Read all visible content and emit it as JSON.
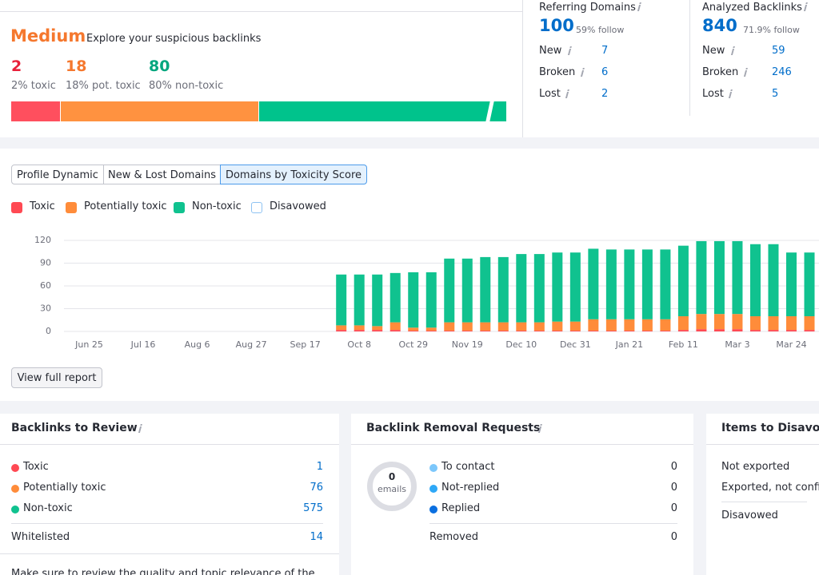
{
  "summary": {
    "level": "Medium",
    "description": "Explore your suspicious backlinks",
    "counts": [
      {
        "value": 2,
        "label": "2% toxic",
        "color": "#e8203a"
      },
      {
        "value": 18,
        "label": "18% pot. toxic",
        "color": "#f5782e"
      },
      {
        "value": 80,
        "label": "80% non-toxic",
        "color": "#00a67e"
      }
    ]
  },
  "stats": [
    {
      "title": "Referring Domains",
      "value": 100,
      "note": "59% follow",
      "rows": [
        {
          "label": "New",
          "value": 7
        },
        {
          "label": "Broken",
          "value": 6
        },
        {
          "label": "Lost",
          "value": 2
        }
      ]
    },
    {
      "title": "Analyzed Backlinks",
      "value": 840,
      "note": "71.9% follow",
      "rows": [
        {
          "label": "New",
          "value": 59
        },
        {
          "label": "Broken",
          "value": 246
        },
        {
          "label": "Lost",
          "value": 5
        }
      ]
    }
  ],
  "tabs": [
    "Profile Dynamic",
    "New & Lost Domains",
    "Domains by Toxicity Score"
  ],
  "active_tab": 2,
  "chart_data": {
    "type": "bar",
    "stacked": true,
    "categories": [
      null,
      "Jun 25",
      null,
      null,
      "Jul 16",
      null,
      null,
      "Aug 6",
      null,
      null,
      "Aug 27",
      null,
      null,
      "Sep 17",
      null,
      null,
      "Oct 8",
      null,
      null,
      "Oct 29",
      null,
      null,
      "Nov 19",
      null,
      null,
      "Dec 10",
      null,
      null,
      "Dec 31",
      null,
      null,
      "Jan 21",
      null,
      null,
      "Feb 11",
      null,
      null,
      "Mar 3",
      null,
      null,
      "Mar 24",
      null
    ],
    "series": [
      {
        "name": "Toxic",
        "color": "#ff4953",
        "values": [
          0,
          0,
          0,
          0,
          0,
          0,
          0,
          0,
          0,
          0,
          0,
          0,
          0,
          0,
          0,
          2,
          2,
          2,
          2,
          1,
          1,
          1,
          1,
          1,
          1,
          1,
          1,
          1,
          1,
          1,
          1,
          1,
          1,
          1,
          2,
          3,
          3,
          3,
          2,
          2,
          2,
          2
        ]
      },
      {
        "name": "Potentially toxic",
        "color": "#ff8c3a",
        "values": [
          0,
          0,
          0,
          0,
          0,
          0,
          0,
          0,
          0,
          0,
          0,
          0,
          0,
          0,
          0,
          6,
          6,
          5,
          10,
          4,
          4,
          11,
          11,
          11,
          11,
          11,
          11,
          12,
          12,
          15,
          15,
          15,
          15,
          15,
          18,
          20,
          20,
          20,
          18,
          18,
          18,
          18
        ]
      },
      {
        "name": "Non-toxic",
        "color": "#10c28f",
        "values": [
          0,
          0,
          0,
          0,
          0,
          0,
          0,
          0,
          0,
          0,
          0,
          0,
          0,
          0,
          0,
          67,
          67,
          68,
          65,
          73,
          73,
          84,
          84,
          86,
          86,
          90,
          90,
          91,
          91,
          93,
          92,
          92,
          92,
          92,
          93,
          96,
          96,
          96,
          95,
          95,
          84,
          84
        ]
      }
    ],
    "hidden_series": [
      {
        "name": "Disavowed"
      }
    ],
    "ylim": [
      0,
      120
    ],
    "yticks": [
      0,
      30,
      60,
      90,
      120
    ],
    "grid": true
  },
  "button": "View full report",
  "cards": [
    {
      "title": "Backlinks to Review",
      "rows": [
        {
          "label": "Toxic",
          "value": 1,
          "color": "#ff4953"
        },
        {
          "label": "Potentially toxic",
          "value": 76,
          "color": "#ff8c3a"
        },
        {
          "label": "Non-toxic",
          "value": 575,
          "color": "#10c28f"
        }
      ],
      "footer_rows": [
        {
          "label": "Whitelisted",
          "value": 14
        }
      ],
      "note": "Make sure to review the quality and topic relevance of the"
    },
    {
      "title": "Backlink Removal Requests",
      "emails": {
        "value": 0,
        "label": "emails"
      },
      "rows": [
        {
          "label": "To contact",
          "value": 0,
          "color": "#7cc7fb"
        },
        {
          "label": "Not-replied",
          "value": 0,
          "color": "#2ea8f7"
        },
        {
          "label": "Replied",
          "value": 0,
          "color": "#0a6fe0"
        }
      ],
      "footer_rows": [
        {
          "label": "Removed",
          "value": 0
        }
      ]
    },
    {
      "title": "Items to Disavow",
      "rows": [
        {
          "label": "Not exported"
        },
        {
          "label": "Exported, not confirmed"
        }
      ],
      "footer_rows": [
        {
          "label": "Disavowed"
        }
      ]
    }
  ]
}
